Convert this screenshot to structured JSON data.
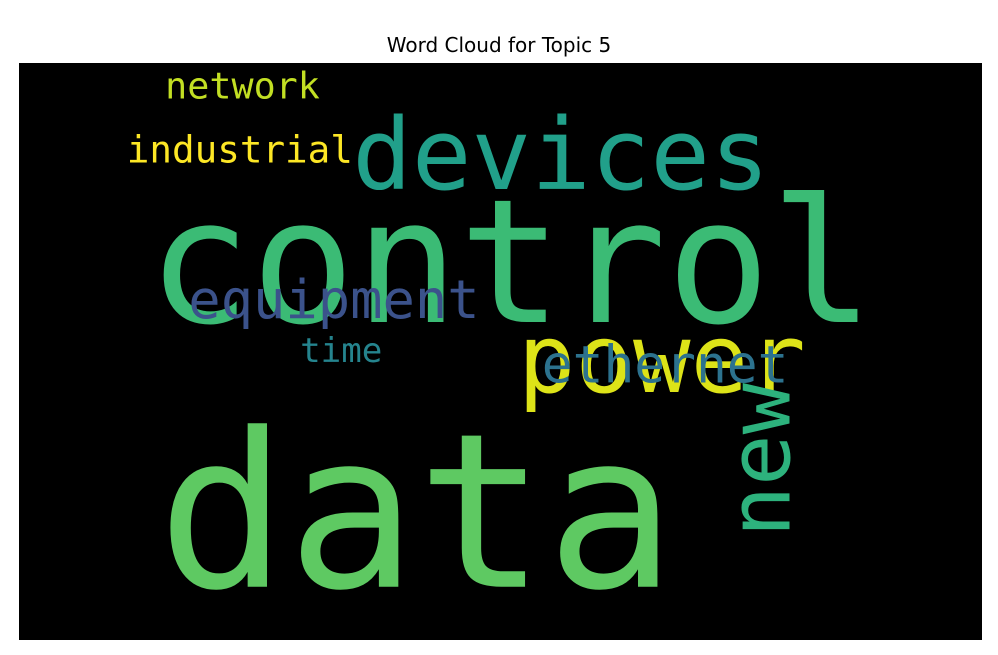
{
  "chart_data": {
    "type": "wordcloud",
    "title": "Word Cloud for Topic 5",
    "background": "#000000",
    "colormap": "viridis",
    "words": [
      {
        "text": "control",
        "weight": 1.0,
        "orientation": "horizontal",
        "color": "#3bbb75"
      },
      {
        "text": "data",
        "weight": 0.98,
        "orientation": "horizontal",
        "color": "#5ec962"
      },
      {
        "text": "devices",
        "weight": 0.52,
        "orientation": "horizontal",
        "color": "#21a08a"
      },
      {
        "text": "power",
        "weight": 0.52,
        "orientation": "horizontal",
        "color": "#dde318"
      },
      {
        "text": "new",
        "weight": 0.44,
        "orientation": "vertical",
        "color": "#2db27d"
      },
      {
        "text": "equipment",
        "weight": 0.3,
        "orientation": "horizontal",
        "color": "#3b528b"
      },
      {
        "text": "ethernet",
        "weight": 0.27,
        "orientation": "horizontal",
        "color": "#2c728e"
      },
      {
        "text": "industrial",
        "weight": 0.21,
        "orientation": "horizontal",
        "color": "#fde725"
      },
      {
        "text": "network",
        "weight": 0.21,
        "orientation": "horizontal",
        "color": "#c2df23"
      },
      {
        "text": "time",
        "weight": 0.18,
        "orientation": "horizontal",
        "color": "#25848e"
      }
    ]
  }
}
